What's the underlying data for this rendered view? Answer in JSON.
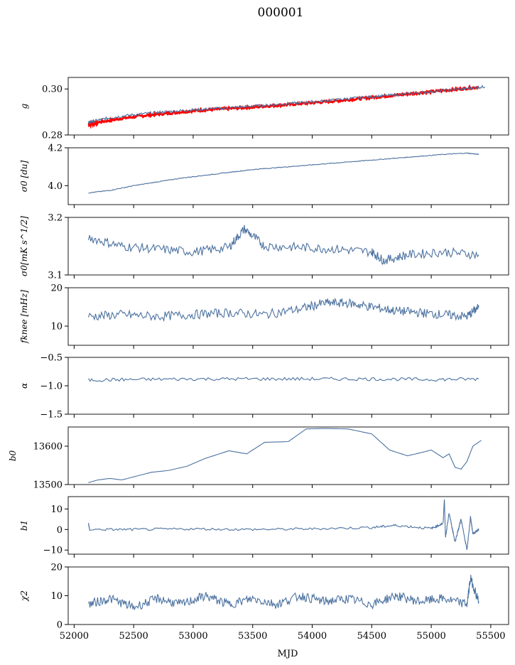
{
  "title": "000001",
  "chart_data": [
    {
      "type": "line",
      "ylabel": "g",
      "ylim": [
        0.28,
        0.305
      ],
      "yticks": [
        "0.28",
        "0.30"
      ],
      "series": [
        {
          "values_x": [
            52120,
            52200,
            52400,
            52600,
            52800,
            53000,
            53200,
            53400,
            53600,
            53800,
            54000,
            54200,
            54400,
            54600,
            54800,
            55000,
            55200,
            55400
          ],
          "values_y": [
            0.2845,
            0.2855,
            0.2872,
            0.2885,
            0.2895,
            0.2905,
            0.2912,
            0.2918,
            0.2925,
            0.2932,
            0.294,
            0.2948,
            0.2958,
            0.2968,
            0.2978,
            0.2988,
            0.2998,
            0.3008
          ]
        },
        {
          "values_x": [
            52120,
            52160,
            52300,
            52500,
            52700,
            52900,
            53100,
            53300,
            53500,
            53700,
            53900,
            54100,
            54300,
            54500,
            54700,
            54900,
            55100,
            55300,
            55450
          ],
          "values_y": [
            0.2855,
            0.286,
            0.2875,
            0.2888,
            0.2898,
            0.2906,
            0.2912,
            0.2918,
            0.2925,
            0.2932,
            0.294,
            0.2948,
            0.2958,
            0.2966,
            0.2974,
            0.2984,
            0.2994,
            0.3002,
            0.301
          ]
        }
      ]
    },
    {
      "type": "line",
      "ylabel": "σ0 [du]",
      "ylim": [
        3.9,
        4.2
      ],
      "yticks": [
        "4.0",
        "4.2"
      ],
      "series": [
        {
          "values_x": [
            52120,
            52300,
            52500,
            52700,
            52900,
            53100,
            53300,
            53500,
            53700,
            53900,
            54100,
            54300,
            54500,
            54700,
            54900,
            55100,
            55300,
            55400
          ],
          "values_y": [
            3.962,
            3.975,
            4.0,
            4.02,
            4.04,
            4.055,
            4.07,
            4.085,
            4.095,
            4.105,
            4.115,
            4.125,
            4.135,
            4.145,
            4.155,
            4.165,
            4.172,
            4.165
          ]
        }
      ]
    },
    {
      "type": "line",
      "ylabel": "σ0[mK s^1/2]",
      "ylim": [
        3.1,
        3.2
      ],
      "yticks": [
        "3.1",
        "3.2"
      ],
      "series": [
        {
          "values_x": [
            52120,
            52400,
            52700,
            53000,
            53300,
            53430,
            53600,
            53900,
            54200,
            54500,
            54600,
            54800,
            55100,
            55400
          ],
          "values_y": [
            3.165,
            3.15,
            3.145,
            3.14,
            3.148,
            3.18,
            3.15,
            3.148,
            3.145,
            3.14,
            3.125,
            3.135,
            3.14,
            3.135
          ]
        }
      ]
    },
    {
      "type": "line",
      "ylabel": "fknee [mHz]",
      "ylim": [
        5,
        20
      ],
      "yticks": [
        "10",
        "20"
      ],
      "series": [
        {
          "values_x": [
            52120,
            52400,
            52700,
            53000,
            53300,
            53600,
            53900,
            54100,
            54300,
            54500,
            54700,
            54900,
            55100,
            55300,
            55400
          ],
          "values_y": [
            12.5,
            13,
            12.5,
            13,
            13.5,
            13,
            14.5,
            16,
            16,
            15,
            14,
            13.5,
            13,
            12.5,
            15
          ]
        }
      ]
    },
    {
      "type": "line",
      "ylabel": "α",
      "ylim": [
        -1.5,
        -0.5
      ],
      "yticks": [
        "−1.5",
        "−1.0",
        "−0.5"
      ],
      "series": [
        {
          "values_x": [
            52120,
            52500,
            53000,
            53500,
            54000,
            54500,
            55000,
            55400
          ],
          "values_y": [
            -0.9,
            -0.89,
            -0.88,
            -0.88,
            -0.88,
            -0.88,
            -0.89,
            -0.88
          ]
        }
      ]
    },
    {
      "type": "line",
      "ylabel": "b0",
      "ylim": [
        13500,
        13650
      ],
      "yticks": [
        "13500",
        "13600"
      ],
      "series": [
        {
          "values_x": [
            52120,
            52200,
            52300,
            52400,
            52500,
            52650,
            52800,
            52950,
            53100,
            53300,
            53450,
            53600,
            53800,
            53950,
            54100,
            54300,
            54500,
            54650,
            54800,
            54900,
            55000,
            55100,
            55150,
            55200,
            55250,
            55300,
            55350,
            55420
          ],
          "values_y": [
            13505,
            13512,
            13516,
            13512,
            13520,
            13532,
            13537,
            13548,
            13568,
            13588,
            13580,
            13610,
            13612,
            13645,
            13646,
            13645,
            13632,
            13590,
            13575,
            13582,
            13590,
            13570,
            13580,
            13545,
            13540,
            13560,
            13600,
            13615
          ]
        }
      ]
    },
    {
      "type": "line",
      "ylabel": "b1",
      "ylim": [
        -12,
        16
      ],
      "yticks": [
        "−10",
        "0",
        "10"
      ],
      "series": [
        {
          "values_x": [
            52120,
            52130,
            52500,
            53000,
            53500,
            54000,
            54500,
            54700,
            55000,
            55100,
            55110,
            55120,
            55150,
            55200,
            55250,
            55300,
            55330,
            55350,
            55400
          ],
          "values_y": [
            3,
            0,
            0,
            0.3,
            0,
            0.3,
            1,
            2,
            0.5,
            3,
            15,
            -4,
            8,
            -6,
            5,
            -10,
            6,
            -2,
            0
          ]
        }
      ]
    },
    {
      "type": "line",
      "ylabel": "χ2",
      "ylim": [
        0,
        20
      ],
      "yticks": [
        "0",
        "10",
        "20"
      ],
      "xlabel": "MJD",
      "xlim": [
        51950,
        55650
      ],
      "xticks": [
        "52000",
        "52500",
        "53000",
        "53500",
        "54000",
        "54500",
        "55000",
        "55500"
      ],
      "series": [
        {
          "values_x": [
            52120,
            52300,
            52500,
            52700,
            52900,
            53100,
            53300,
            53500,
            53700,
            53900,
            54100,
            54300,
            54500,
            54700,
            54900,
            55100,
            55300,
            55330,
            55400
          ],
          "values_y": [
            7,
            9,
            6,
            9,
            7,
            10,
            7,
            9,
            7,
            10,
            8,
            9,
            7,
            10,
            8,
            9,
            7,
            16,
            8
          ]
        }
      ]
    }
  ]
}
